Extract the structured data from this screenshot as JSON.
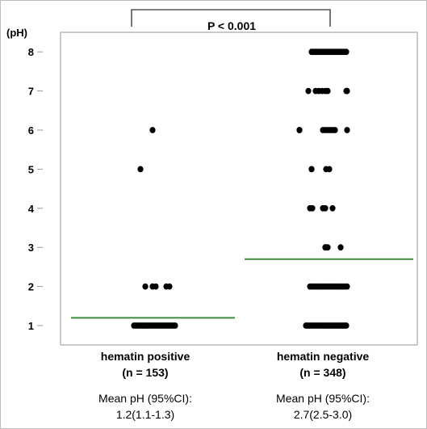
{
  "chart_data": {
    "type": "scatter",
    "ylabel": "(pH)",
    "yticks": [
      1,
      2,
      3,
      4,
      5,
      6,
      7,
      8
    ],
    "ylim": [
      0.7,
      8.5
    ],
    "grid": false,
    "significance": "P < 0.001",
    "mean_line_color": "#3d8c3d",
    "point_color": "#000000",
    "groups": [
      {
        "label": "hematin positive",
        "n_label": "(n = 153)",
        "mean_label": "Mean pH (95%CI):",
        "mean_value": "1.2(1.1-1.3)",
        "mean": 1.2,
        "points": [
          {
            "y": 6,
            "count": 1
          },
          {
            "y": 5,
            "count": 1
          },
          {
            "y": 2,
            "count": 5
          },
          {
            "y": 1,
            "count": 24
          }
        ]
      },
      {
        "label": "hematin negative",
        "n_label": "(n = 348)",
        "mean_label": "Mean pH (95%CI):",
        "mean_value": "2.7(2.5-3.0)",
        "mean": 2.7,
        "points": [
          {
            "y": 8,
            "count": 17
          },
          {
            "y": 7,
            "count": 8
          },
          {
            "y": 6,
            "count": 9
          },
          {
            "y": 5,
            "count": 4
          },
          {
            "y": 4,
            "count": 5
          },
          {
            "y": 3,
            "count": 4
          },
          {
            "y": 2,
            "count": 22
          },
          {
            "y": 1,
            "count": 24
          }
        ]
      }
    ]
  }
}
